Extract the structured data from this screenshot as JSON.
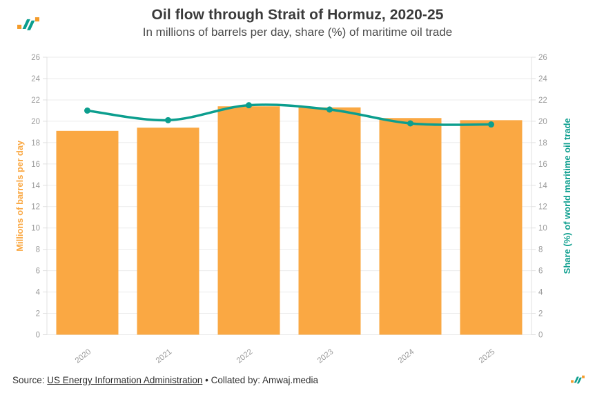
{
  "header": {
    "title": "Oil flow through Strait of Hormuz, 2020-25",
    "subtitle": "In millions of barrels per day, share (%) of maritime oil trade"
  },
  "chart_data": {
    "type": "bar+line combo",
    "categories": [
      "2020",
      "2021",
      "2022",
      "2023",
      "2024",
      "2025"
    ],
    "series": [
      {
        "name": "Millions of barrels per day",
        "type": "bar",
        "axis": "left",
        "color": "#FAA843",
        "values": [
          19.1,
          19.4,
          21.4,
          21.3,
          20.3,
          20.1
        ]
      },
      {
        "name": "Share (%) of world maritime oil trade",
        "type": "line",
        "axis": "right",
        "color": "#0C9E8E",
        "values": [
          21.0,
          20.1,
          21.5,
          21.1,
          19.8,
          19.7
        ]
      }
    ],
    "ylabel_left": "Millions of barrels per day",
    "ylabel_right": "Share (%) of world maritime oil trade",
    "ylim": [
      0,
      26
    ],
    "yticks": [
      0,
      2,
      4,
      6,
      8,
      10,
      12,
      14,
      16,
      18,
      20,
      22,
      24,
      26
    ],
    "grid": true,
    "legend": "none"
  },
  "footer": {
    "source_label": "Source:",
    "source_link": "US Energy Information Administration",
    "bullet": "•",
    "collated": "Collated by: Amwaj.media"
  },
  "colors": {
    "bar_orange": "#FAA843",
    "line_teal": "#0C9E8E",
    "title_text": "#3a3a3a",
    "tick_text": "#9b9b9b",
    "gridline": "#ebebeb",
    "axis_line": "#e0e0e0",
    "background": "#ffffff"
  }
}
